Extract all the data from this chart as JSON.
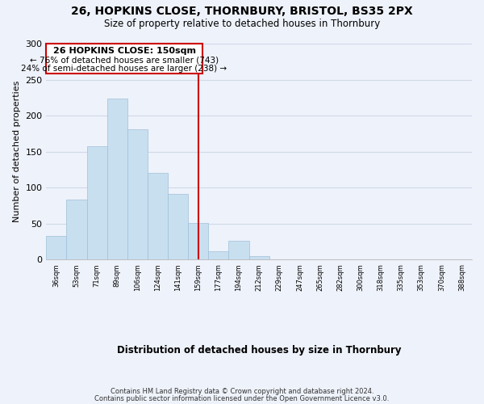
{
  "title1": "26, HOPKINS CLOSE, THORNBURY, BRISTOL, BS35 2PX",
  "title2": "Size of property relative to detached houses in Thornbury",
  "xlabel": "Distribution of detached houses by size in Thornbury",
  "ylabel": "Number of detached properties",
  "bar_color": "#c8dff0",
  "bar_edge_color": "#a0bfd8",
  "annotation_box_color": "#ffffff",
  "annotation_box_edge": "#cc0000",
  "vline_color": "#cc0000",
  "background_color": "#eef2fa",
  "grid_color": "#d0d8e8",
  "tick_labels": [
    "36sqm",
    "53sqm",
    "71sqm",
    "89sqm",
    "106sqm",
    "124sqm",
    "141sqm",
    "159sqm",
    "177sqm",
    "194sqm",
    "212sqm",
    "229sqm",
    "247sqm",
    "265sqm",
    "282sqm",
    "300sqm",
    "318sqm",
    "335sqm",
    "353sqm",
    "370sqm",
    "388sqm"
  ],
  "bar_heights": [
    33,
    83,
    158,
    224,
    181,
    120,
    91,
    51,
    12,
    26,
    5,
    0,
    1,
    0,
    0,
    0,
    0,
    0,
    0,
    1,
    0
  ],
  "vline_position": 7.0,
  "annotation_line1": "26 HOPKINS CLOSE: 150sqm",
  "annotation_line2": "← 76% of detached houses are smaller (743)",
  "annotation_line3": "24% of semi-detached houses are larger (238) →",
  "ylim": [
    0,
    300
  ],
  "yticks": [
    0,
    50,
    100,
    150,
    200,
    250,
    300
  ],
  "footer1": "Contains HM Land Registry data © Crown copyright and database right 2024.",
  "footer2": "Contains public sector information licensed under the Open Government Licence v3.0."
}
